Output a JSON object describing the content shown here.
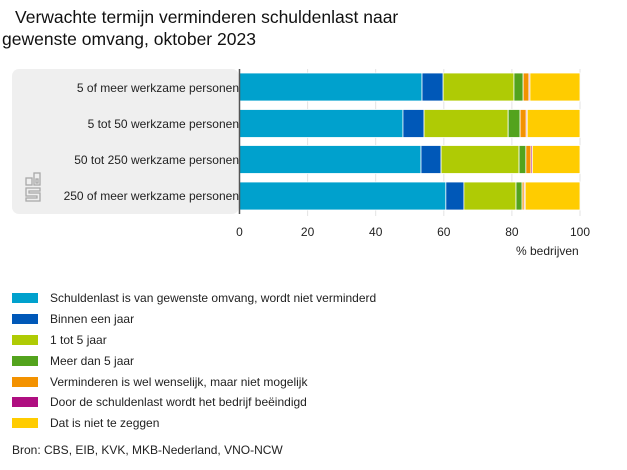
{
  "chart_data": {
    "type": "bar",
    "orientation": "horizontal",
    "stacked": true,
    "title": "Verwachte termijn verminderen schuldenlast naar gewenste omvang, oktober 2023",
    "title_lines": [
      "Verwachte termijn verminderen schuldenlast naar",
      "gewenste omvang, oktober 2023"
    ],
    "xlabel": "% bedrijven",
    "ylabel": "",
    "xlim": [
      0,
      100
    ],
    "x_ticks": [
      0,
      20,
      40,
      60,
      80,
      100
    ],
    "grid": true,
    "legend_position": "bottom",
    "categories": [
      "5 of meer werkzame personen",
      "5 tot 50 werkzame personen",
      "50 tot 250 werkzame personen",
      "250 of meer werkzame personen"
    ],
    "series": [
      {
        "name": "Schuldenlast is van gewenste omvang, wordt niet verminderd",
        "color": "#00a1cd",
        "values": [
          53.6,
          48.0,
          53.3,
          60.6
        ]
      },
      {
        "name": "Binnen een jaar",
        "color": "#0058b8",
        "values": [
          6.2,
          6.2,
          5.9,
          5.3
        ]
      },
      {
        "name": "1 tot 5 jaar",
        "color": "#afcb05",
        "values": [
          20.8,
          24.7,
          22.9,
          15.3
        ]
      },
      {
        "name": "Meer dan 5 jaar",
        "color": "#53a31d",
        "values": [
          2.7,
          3.5,
          2.0,
          1.8
        ]
      },
      {
        "name": "Verminderen is wel wenselijk, maar niet mogelijk",
        "color": "#f39200",
        "values": [
          1.7,
          1.8,
          1.5,
          0.6
        ]
      },
      {
        "name": "Door de schuldenlast wordt het bedrijf beëindigd",
        "color": "#af0e80",
        "values": [
          0.3,
          0.3,
          0.4,
          0.3
        ]
      },
      {
        "name": "Dat is niet te zeggen",
        "color": "#ffcc00",
        "values": [
          14.7,
          15.5,
          14.0,
          16.1
        ]
      }
    ]
  },
  "source": "Bron: CBS, EIB, KVK, MKB-Nederland, VNO-NCW",
  "logo": "cbs-logo"
}
